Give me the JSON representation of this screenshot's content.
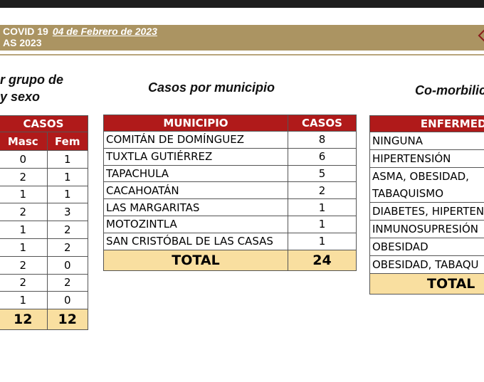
{
  "header": {
    "title": "COVID 19",
    "date": "04 de Febrero de 2023",
    "subtitle": "AS 2023"
  },
  "headings": {
    "age_sex": [
      "r grupo de",
      "y sexo"
    ],
    "municipio": "Casos por municipio",
    "comorbilidad": "Co-morbilic"
  },
  "age_table": {
    "header": "CASOS",
    "cols": [
      "Masc",
      "Fem"
    ],
    "rows": [
      [
        0,
        1
      ],
      [
        2,
        1
      ],
      [
        1,
        1
      ],
      [
        2,
        3
      ],
      [
        1,
        2
      ],
      [
        1,
        2
      ],
      [
        2,
        0
      ],
      [
        2,
        2
      ],
      [
        1,
        0
      ]
    ],
    "total": [
      12,
      12
    ]
  },
  "municipio_table": {
    "cols": [
      "MUNICIPIO",
      "CASOS"
    ],
    "rows": [
      [
        "COMITÁN DE DOMÍNGUEZ",
        8
      ],
      [
        "TUXTLA GUTIÉRREZ",
        6
      ],
      [
        "TAPACHULA",
        5
      ],
      [
        "CACAHOATÁN",
        2
      ],
      [
        "LAS MARGARITAS",
        1
      ],
      [
        "MOTOZINTLA",
        1
      ],
      [
        "SAN CRISTÓBAL DE LAS CASAS",
        1
      ]
    ],
    "total_label": "TOTAL",
    "total": 24
  },
  "comorb_table": {
    "header": "ENFERMEDA",
    "rows": [
      "NINGUNA",
      "HIPERTENSIÓN",
      "ASMA, OBESIDAD, TABAQUISMO",
      "DIABETES, HIPERTEN",
      "INMUNOSUPRESIÓN",
      "OBESIDAD",
      "OBESIDAD, TABAQU"
    ],
    "total_label": "TOTAL"
  },
  "colors": {
    "band": "#ab9462",
    "header_red": "#b01a1a",
    "total_yellow": "#f9dfa0"
  }
}
